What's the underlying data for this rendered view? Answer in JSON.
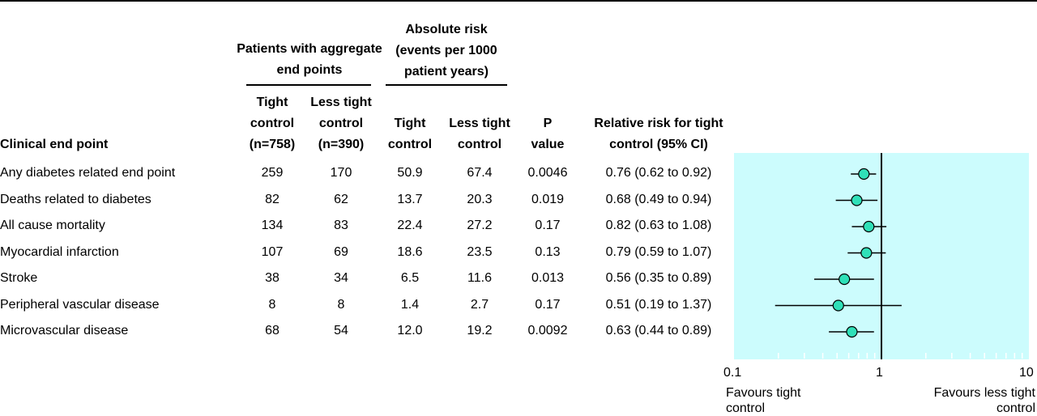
{
  "headers": {
    "group_patients": [
      "Patients with aggregate",
      "end points"
    ],
    "group_absolute": [
      "Absolute risk",
      "(events per 1000",
      "patient years)"
    ],
    "clinical_end_point": "Clinical end point",
    "tight_control_n": [
      "Tight",
      "control",
      "(n=758)"
    ],
    "less_tight_control_n": [
      "Less tight",
      "control",
      "(n=390)"
    ],
    "tight_control": [
      "Tight",
      "control"
    ],
    "less_tight_control": [
      "Less tight",
      "control"
    ],
    "p_value": [
      "P",
      "value"
    ],
    "relative_risk": [
      "Relative risk for tight",
      "control (95% CI)"
    ]
  },
  "rows": [
    {
      "end_point": "Any diabetes related end point",
      "tight_n": "259",
      "less_tight_n": "170",
      "abs_tight": "50.9",
      "abs_less_tight": "67.4",
      "p": "0.0046",
      "rr_text": "0.76 (0.62 to 0.92)"
    },
    {
      "end_point": "Deaths related to diabetes",
      "tight_n": "82",
      "less_tight_n": "62",
      "abs_tight": "13.7",
      "abs_less_tight": "20.3",
      "p": "0.019",
      "rr_text": "0.68 (0.49 to 0.94)"
    },
    {
      "end_point": "All cause mortality",
      "tight_n": "134",
      "less_tight_n": "83",
      "abs_tight": "22.4",
      "abs_less_tight": "27.2",
      "p": "0.17",
      "rr_text": "0.82 (0.63 to 1.08)"
    },
    {
      "end_point": "Myocardial infarction",
      "tight_n": "107",
      "less_tight_n": "69",
      "abs_tight": "18.6",
      "abs_less_tight": "23.5",
      "p": "0.13",
      "rr_text": "0.79 (0.59 to 1.07)"
    },
    {
      "end_point": "Stroke",
      "tight_n": "38",
      "less_tight_n": "34",
      "abs_tight": "6.5",
      "abs_less_tight": "11.6",
      "p": "0.013",
      "rr_text": "0.56 (0.35 to 0.89)"
    },
    {
      "end_point": "Peripheral vascular disease",
      "tight_n": "8",
      "less_tight_n": "8",
      "abs_tight": "1.4",
      "abs_less_tight": "2.7",
      "p": "0.17",
      "rr_text": "0.51 (0.19 to 1.37)"
    },
    {
      "end_point": "Microvascular disease",
      "tight_n": "68",
      "less_tight_n": "54",
      "abs_tight": "12.0",
      "abs_less_tight": "19.2",
      "p": "0.0092",
      "rr_text": "0.63 (0.44 to 0.89)"
    }
  ],
  "axis": {
    "tick_labels": [
      "0.1",
      "1",
      "10"
    ],
    "left_caption": [
      "Favours tight",
      "control"
    ],
    "right_caption": [
      "Favours less tight",
      "control"
    ]
  },
  "chart_data": {
    "type": "scatter",
    "scale": "log",
    "xlim": [
      0.1,
      10
    ],
    "reference_line": 1,
    "categories": [
      "Any diabetes related end point",
      "Deaths related to diabetes",
      "All cause mortality",
      "Myocardial infarction",
      "Stroke",
      "Peripheral vascular disease",
      "Microvascular disease"
    ],
    "estimates": [
      0.76,
      0.68,
      0.82,
      0.79,
      0.56,
      0.51,
      0.63
    ],
    "ci_low": [
      0.62,
      0.49,
      0.63,
      0.59,
      0.35,
      0.19,
      0.44
    ],
    "ci_high": [
      0.92,
      0.94,
      1.08,
      1.07,
      0.89,
      1.37,
      0.89
    ],
    "xticks": [
      0.1,
      1,
      10
    ],
    "minor_ticks": [
      0.2,
      0.3,
      0.4,
      0.5,
      0.6,
      0.7,
      0.8,
      0.9,
      2,
      3,
      4,
      5,
      6,
      7,
      8,
      9
    ],
    "colors": {
      "panel": "#ccfcfd",
      "marker": "#2fe0b8",
      "line": "#000000"
    }
  }
}
